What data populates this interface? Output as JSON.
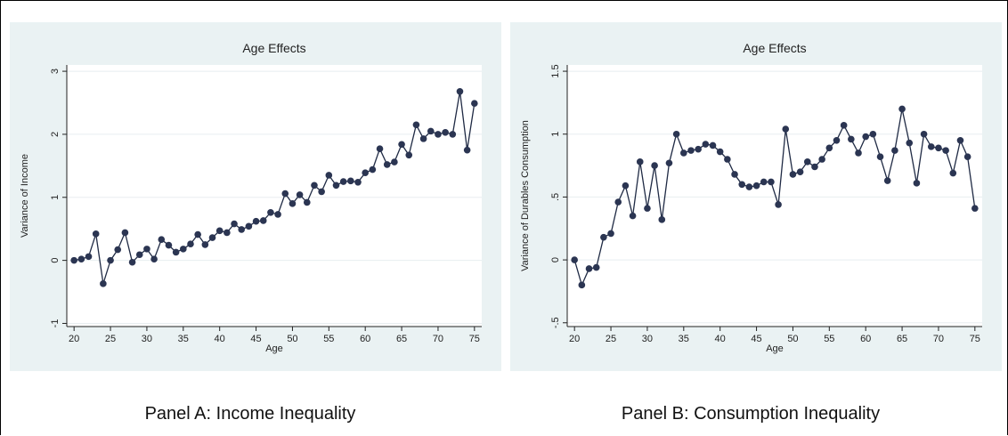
{
  "captions": {
    "panel_a": "Panel A: Income Inequality",
    "panel_b": "Panel B: Consumption Inequality"
  },
  "colors": {
    "plot_bg": "#eaf2f3",
    "frame_bg": "#ffffff",
    "line": "#1f2a44",
    "marker": "#2b3552",
    "grid": "#ffffff"
  },
  "chart_data": [
    {
      "type": "line",
      "title": "Age Effects",
      "xlabel": "Age",
      "ylabel": "Variance of Income",
      "xlim": [
        19,
        76
      ],
      "ylim": [
        -1.05,
        3.1
      ],
      "xticks": [
        20,
        25,
        30,
        35,
        40,
        45,
        50,
        55,
        60,
        65,
        70,
        75
      ],
      "yticks": [
        -1,
        0,
        1,
        2,
        3
      ],
      "ytick_labels": [
        "-1",
        "0",
        "1",
        "2",
        "3"
      ],
      "grid": true,
      "series": [
        {
          "x": [
            20,
            21,
            22,
            23,
            24,
            25,
            26,
            27,
            28,
            29,
            30,
            31,
            32,
            33,
            34,
            35,
            36,
            37,
            38,
            39,
            40,
            41,
            42,
            43,
            44,
            45,
            46,
            47,
            48,
            49,
            50,
            51,
            52,
            53,
            54,
            55,
            56,
            57,
            58,
            59,
            60,
            61,
            62,
            63,
            64,
            65,
            66,
            67,
            68,
            69,
            70,
            71,
            72,
            73,
            74,
            75
          ],
          "y": [
            0,
            0.02,
            0.06,
            0.42,
            -0.37,
            0,
            0.17,
            0.44,
            -0.03,
            0.09,
            0.18,
            0.02,
            0.33,
            0.24,
            0.13,
            0.18,
            0.26,
            0.41,
            0.25,
            0.36,
            0.47,
            0.44,
            0.58,
            0.49,
            0.54,
            0.62,
            0.63,
            0.76,
            0.73,
            1.06,
            0.9,
            1.04,
            0.92,
            1.19,
            1.09,
            1.35,
            1.19,
            1.25,
            1.26,
            1.24,
            1.39,
            1.44,
            1.77,
            1.52,
            1.56,
            1.84,
            1.67,
            2.15,
            1.93,
            2.05,
            2.0,
            2.03,
            2.0,
            2.68,
            1.75,
            2.49
          ]
        }
      ]
    },
    {
      "type": "line",
      "title": "Age Effects",
      "xlabel": "Age",
      "ylabel": "Variance of Durables Consumption",
      "xlim": [
        19,
        76
      ],
      "ylim": [
        -0.53,
        1.55
      ],
      "xticks": [
        20,
        25,
        30,
        35,
        40,
        45,
        50,
        55,
        60,
        65,
        70,
        75
      ],
      "yticks": [
        -0.5,
        0,
        0.5,
        1,
        1.5
      ],
      "ytick_labels": [
        "-.5",
        "0",
        ".5",
        "1",
        "1.5"
      ],
      "grid": true,
      "series": [
        {
          "x": [
            20,
            21,
            22,
            23,
            24,
            25,
            26,
            27,
            28,
            29,
            30,
            31,
            32,
            33,
            34,
            35,
            36,
            37,
            38,
            39,
            40,
            41,
            42,
            43,
            44,
            45,
            46,
            47,
            48,
            49,
            50,
            51,
            52,
            53,
            54,
            55,
            56,
            57,
            58,
            59,
            60,
            61,
            62,
            63,
            64,
            65,
            66,
            67,
            68,
            69,
            70,
            71,
            72,
            73,
            74,
            75
          ],
          "y": [
            0,
            -0.2,
            -0.07,
            -0.06,
            0.18,
            0.21,
            0.46,
            0.59,
            0.35,
            0.78,
            0.41,
            0.75,
            0.32,
            0.77,
            1.0,
            0.85,
            0.87,
            0.88,
            0.92,
            0.91,
            0.86,
            0.8,
            0.68,
            0.6,
            0.58,
            0.59,
            0.62,
            0.62,
            0.44,
            1.04,
            0.68,
            0.7,
            0.78,
            0.74,
            0.8,
            0.89,
            0.95,
            1.07,
            0.96,
            0.85,
            0.98,
            1.0,
            0.82,
            0.63,
            0.87,
            1.2,
            0.93,
            0.61,
            1.0,
            0.9,
            0.89,
            0.87,
            0.69,
            0.95,
            0.82,
            0.41
          ]
        }
      ]
    }
  ]
}
